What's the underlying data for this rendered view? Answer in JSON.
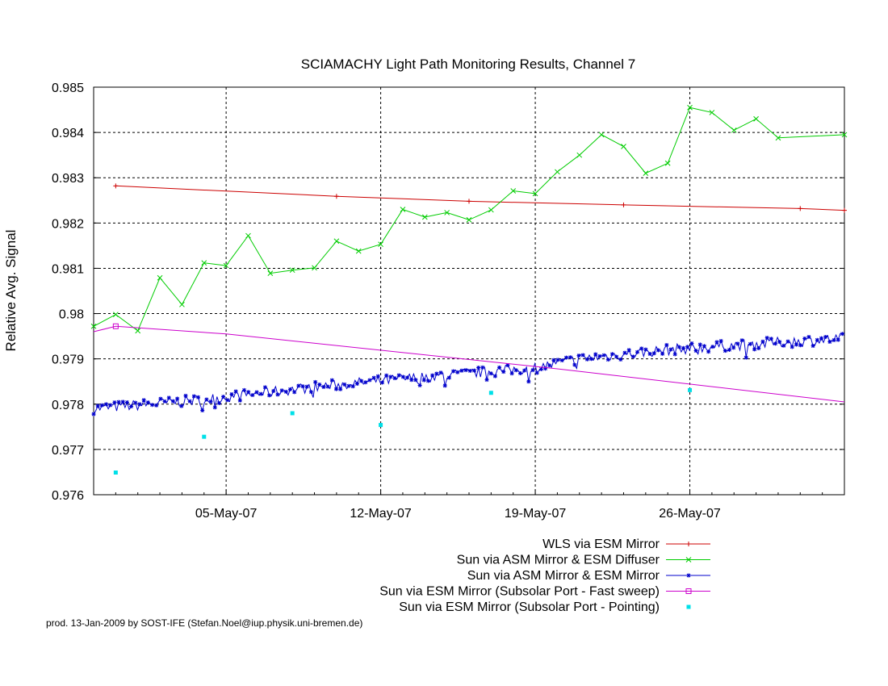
{
  "chart_data": {
    "type": "line",
    "title": "SCIAMACHY Light Path Monitoring Results, Channel 7",
    "xlabel": "",
    "ylabel": "Relative Avg. Signal",
    "x_is_date": true,
    "xlim": [
      "2007-04-29",
      "2007-06-02"
    ],
    "ylim": [
      0.976,
      0.985
    ],
    "x_ticks": [
      {
        "date": "2007-05-05",
        "label": "05-May-07"
      },
      {
        "date": "2007-05-12",
        "label": "12-May-07"
      },
      {
        "date": "2007-05-19",
        "label": "19-May-07"
      },
      {
        "date": "2007-05-26",
        "label": "26-May-07"
      }
    ],
    "y_ticks": [
      {
        "value": 0.976,
        "label": "0.976"
      },
      {
        "value": 0.977,
        "label": "0.977"
      },
      {
        "value": 0.978,
        "label": "0.978"
      },
      {
        "value": 0.979,
        "label": "0.979"
      },
      {
        "value": 0.98,
        "label": "0.98"
      },
      {
        "value": 0.981,
        "label": "0.981"
      },
      {
        "value": 0.982,
        "label": "0.982"
      },
      {
        "value": 0.983,
        "label": "0.983"
      },
      {
        "value": 0.984,
        "label": "0.984"
      },
      {
        "value": 0.985,
        "label": "0.985"
      }
    ],
    "grid": true,
    "legend_position": "bottom-right, below plot",
    "series": [
      {
        "name": "WLS via ESM Mirror",
        "color": "#cc0000",
        "style": "line-points",
        "marker": "plus",
        "points": [
          [
            "2007-04-30 00:00",
            0.98282
          ],
          [
            "2007-05-10 00:00",
            0.98259
          ],
          [
            "2007-05-16 00:00",
            0.98248
          ],
          [
            "2007-05-23 00:00",
            0.9824
          ],
          [
            "2007-05-31 00:00",
            0.98232
          ],
          [
            "2007-06-02 00:00",
            0.98228
          ]
        ]
      },
      {
        "name": "Sun via ASM Mirror & ESM Diffuser",
        "color": "#00cc00",
        "style": "line-points",
        "marker": "x",
        "points": [
          [
            "2007-04-29 00:00",
            0.97972
          ],
          [
            "2007-04-30 00:00",
            0.97998
          ],
          [
            "2007-05-01 00:00",
            0.97962
          ],
          [
            "2007-05-02 00:00",
            0.98079
          ],
          [
            "2007-05-03 00:00",
            0.9802
          ],
          [
            "2007-05-04 00:00",
            0.98112
          ],
          [
            "2007-05-05 00:00",
            0.98106
          ],
          [
            "2007-05-06 00:00",
            0.98172
          ],
          [
            "2007-05-07 00:00",
            0.98089
          ],
          [
            "2007-05-08 00:00",
            0.98096
          ],
          [
            "2007-05-09 00:00",
            0.98101
          ],
          [
            "2007-05-10 00:00",
            0.9816
          ],
          [
            "2007-05-11 00:00",
            0.98138
          ],
          [
            "2007-05-12 00:00",
            0.98153
          ],
          [
            "2007-05-13 00:00",
            0.9823
          ],
          [
            "2007-05-14 00:00",
            0.98213
          ],
          [
            "2007-05-15 00:00",
            0.98223
          ],
          [
            "2007-05-16 00:00",
            0.98207
          ],
          [
            "2007-05-17 00:00",
            0.98229
          ],
          [
            "2007-05-18 00:00",
            0.98271
          ],
          [
            "2007-05-19 00:00",
            0.98265
          ],
          [
            "2007-05-20 00:00",
            0.98313
          ],
          [
            "2007-05-21 00:00",
            0.9835
          ],
          [
            "2007-05-22 00:00",
            0.98395
          ],
          [
            "2007-05-23 00:00",
            0.98369
          ],
          [
            "2007-05-24 00:00",
            0.9831
          ],
          [
            "2007-05-25 00:00",
            0.98332
          ],
          [
            "2007-05-26 00:00",
            0.98455
          ],
          [
            "2007-05-27 00:00",
            0.98444
          ],
          [
            "2007-05-28 00:00",
            0.98405
          ],
          [
            "2007-05-29 00:00",
            0.9843
          ],
          [
            "2007-05-30 00:00",
            0.98388
          ],
          [
            "2007-06-02 00:00",
            0.98395
          ]
        ]
      },
      {
        "name": "Sun via ASM Mirror & ESM Mirror",
        "color": "#0000cc",
        "style": "dense-noisy-line",
        "marker": "star",
        "trend": [
          [
            "2007-04-29 00:00",
            0.9779
          ],
          [
            "2007-05-04 00:00",
            0.9781
          ],
          [
            "2007-05-09 00:00",
            0.97838
          ],
          [
            "2007-05-14 00:00",
            0.9786
          ],
          [
            "2007-05-19 00:00",
            0.9788
          ],
          [
            "2007-05-21 00:00",
            0.979
          ],
          [
            "2007-05-25 00:00",
            0.9792
          ],
          [
            "2007-05-28 00:00",
            0.9793
          ],
          [
            "2007-06-02 00:00",
            0.97945
          ]
        ],
        "noise_amplitude": 0.00012,
        "samples": 360
      },
      {
        "name": "Sun via ESM Mirror (Subsolar Port - Fast sweep)",
        "color": "#cc00cc",
        "style": "line-points",
        "marker": "square",
        "points": [
          [
            "2007-04-29 00:00",
            0.9796
          ],
          [
            "2007-04-30 00:00",
            0.97972
          ],
          [
            "2007-05-05 00:00",
            0.97955
          ],
          [
            "2007-05-20 00:00",
            0.97878
          ],
          [
            "2007-06-02 00:00",
            0.97805
          ]
        ],
        "marked": [
          [
            "2007-04-30 00:00",
            0.97972
          ]
        ]
      },
      {
        "name": "Sun via ESM Mirror (Subsolar Port - Pointing)",
        "color": "#00e0e8",
        "style": "points",
        "marker": "dot",
        "points": [
          [
            "2007-04-30 00:00",
            0.97649
          ],
          [
            "2007-05-04 00:00",
            0.97728
          ],
          [
            "2007-05-08 00:00",
            0.9778
          ],
          [
            "2007-05-12 00:00",
            0.97754
          ],
          [
            "2007-05-17 00:00",
            0.97825
          ],
          [
            "2007-05-26 00:00",
            0.97831
          ]
        ]
      }
    ]
  },
  "footer": "prod. 13-Jan-2009 by SOST-IFE (Stefan.Noel@iup.physik.uni-bremen.de)"
}
